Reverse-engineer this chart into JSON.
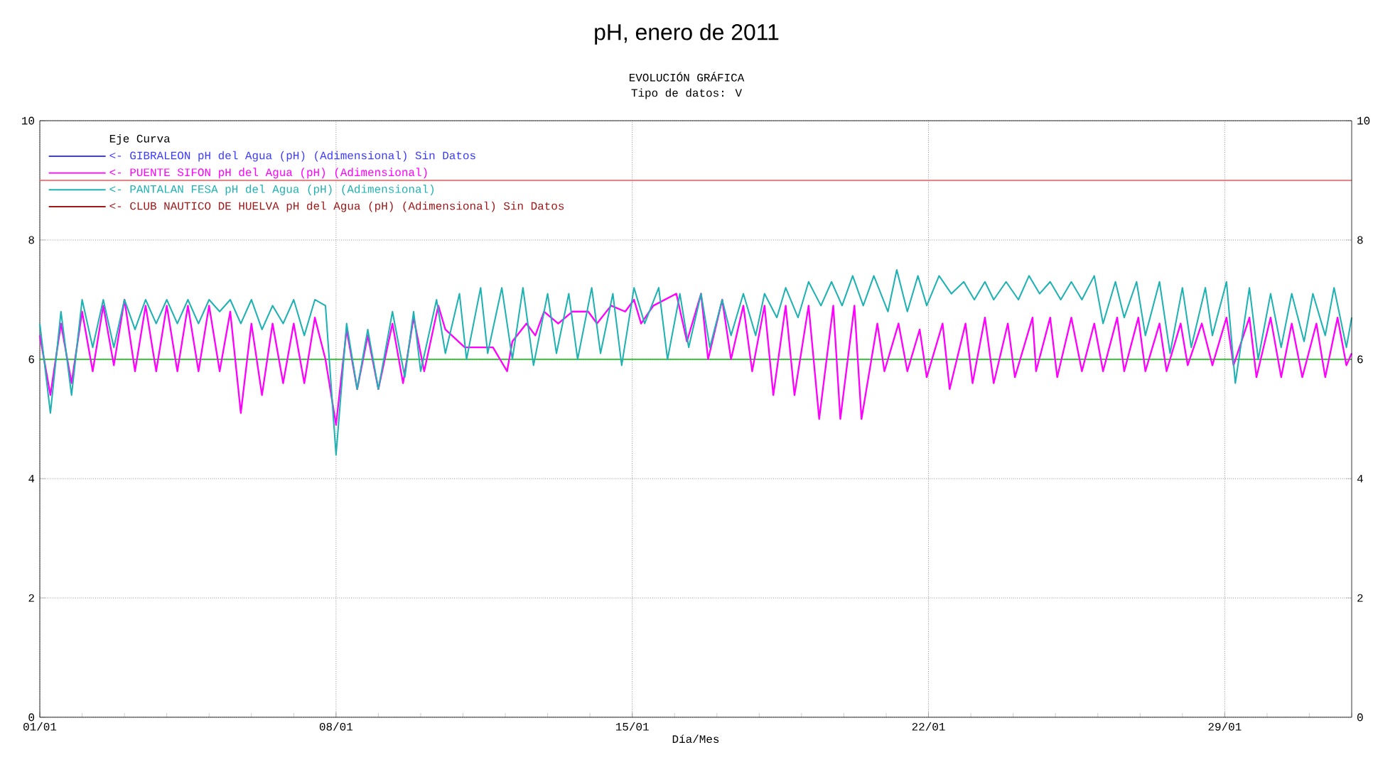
{
  "chart_data": {
    "type": "line",
    "title": "pH, enero de 2011",
    "subtitle": "EVOLUCIÓN GRÁFICA",
    "annotations": [
      "Tipo de datos:  V"
    ],
    "xlabel": "Día/Mes",
    "legend_title": "Eje Curva",
    "legend": "top left",
    "grid": true,
    "xlim": [
      "2011-01-01",
      "2011-02-01"
    ],
    "xticks": [
      {
        "value": "2011-01-01",
        "label": "01/01"
      },
      {
        "value": "2011-01-08",
        "label": "08/01"
      },
      {
        "value": "2011-01-15",
        "label": "15/01"
      },
      {
        "value": "2011-01-22",
        "label": "22/01"
      },
      {
        "value": "2011-01-29",
        "label": "29/01"
      }
    ],
    "ylim": [
      0,
      10
    ],
    "yticks": [
      0,
      2,
      4,
      6,
      8,
      10
    ],
    "y2lim": [
      0,
      10
    ],
    "y2ticks": [
      0,
      2,
      4,
      6,
      8,
      10
    ],
    "ref_lines": [
      {
        "axis": "y",
        "value": 9,
        "color": "#ff5050"
      },
      {
        "axis": "y",
        "value": 6,
        "color": "#00c000"
      }
    ],
    "series": [
      {
        "name": "<-  GIBRALEON pH del Agua (pH) (Adimensional) Sin Datos",
        "color": "#3c3cff"
      },
      {
        "name": "<-  PUENTE SIFON pH del Agua (pH) (Adimensional)",
        "color": "#ff00ff",
        "x": [
          "2011-01-01T00:00",
          "2011-01-01T06:00",
          "2011-01-01T12:00",
          "2011-01-01T18:00",
          "2011-01-02T00:00",
          "2011-01-02T06:00",
          "2011-01-02T12:00",
          "2011-01-02T18:00",
          "2011-01-03T00:00",
          "2011-01-03T06:00",
          "2011-01-03T12:00",
          "2011-01-03T18:00",
          "2011-01-04T00:00",
          "2011-01-04T06:00",
          "2011-01-04T12:00",
          "2011-01-04T18:00",
          "2011-01-05T00:00",
          "2011-01-05T06:00",
          "2011-01-05T12:00",
          "2011-01-05T18:00",
          "2011-01-06T00:00",
          "2011-01-06T06:00",
          "2011-01-06T12:00",
          "2011-01-06T18:00",
          "2011-01-07T00:00",
          "2011-01-07T06:00",
          "2011-01-07T12:00",
          "2011-01-07T18:00",
          "2011-01-08T00:00",
          "2011-01-08T06:00",
          "2011-01-08T12:00",
          "2011-01-08T18:00",
          "2011-01-09T00:00",
          "2011-01-09T08:00",
          "2011-01-09T14:00",
          "2011-01-09T20:00",
          "2011-01-10T02:00",
          "2011-01-10T10:00",
          "2011-01-10T14:00",
          "2011-01-11T01:00",
          "2011-01-11T17:00",
          "2011-01-12T01:00",
          "2011-01-12T04:00",
          "2011-01-12T12:00",
          "2011-01-12T17:00",
          "2011-01-12T22:00",
          "2011-01-13T06:00",
          "2011-01-13T14:00",
          "2011-01-13T23:00",
          "2011-01-14T04:00",
          "2011-01-14T12:00",
          "2011-01-14T20:00",
          "2011-01-15T01:00",
          "2011-01-15T05:00",
          "2011-01-15T12:00",
          "2011-01-16T01:00",
          "2011-01-16T07:00",
          "2011-01-16T15:00",
          "2011-01-16T19:00",
          "2011-01-17T03:00",
          "2011-01-17T08:00",
          "2011-01-17T15:00",
          "2011-01-17T20:00",
          "2011-01-18T03:00",
          "2011-01-18T08:00",
          "2011-01-18T15:00",
          "2011-01-18T20:00",
          "2011-01-19T04:00",
          "2011-01-19T10:00",
          "2011-01-19T18:00",
          "2011-01-19T22:00",
          "2011-01-20T06:00",
          "2011-01-20T10:00",
          "2011-01-20T19:00",
          "2011-01-20T23:00",
          "2011-01-21T07:00",
          "2011-01-21T12:00",
          "2011-01-21T19:00",
          "2011-01-21T23:00",
          "2011-01-22T08:00",
          "2011-01-22T12:00",
          "2011-01-22T21:00",
          "2011-01-23T01:00",
          "2011-01-23T08:00",
          "2011-01-23T13:00",
          "2011-01-23T21:00",
          "2011-01-24T01:00",
          "2011-01-24T11:00",
          "2011-01-24T13:00",
          "2011-01-24T21:00",
          "2011-01-25T01:00",
          "2011-01-25T09:00",
          "2011-01-25T15:00",
          "2011-01-25T22:00",
          "2011-01-26T03:00",
          "2011-01-26T11:00",
          "2011-01-26T15:00",
          "2011-01-26T23:00",
          "2011-01-27T03:00",
          "2011-01-27T11:00",
          "2011-01-27T15:00",
          "2011-01-27T23:00",
          "2011-01-28T03:00",
          "2011-01-28T11:00",
          "2011-01-28T17:00",
          "2011-01-29T01:00",
          "2011-01-29T05:00",
          "2011-01-29T14:00",
          "2011-01-29T18:00",
          "2011-01-30T02:00",
          "2011-01-30T08:00",
          "2011-01-30T14:00",
          "2011-01-30T20:00",
          "2011-01-31T04:00",
          "2011-01-31T09:00",
          "2011-01-31T16:00",
          "2011-01-31T21:00",
          "2011-02-01T00:00"
        ],
        "values": [
          6.4,
          5.4,
          6.6,
          5.6,
          6.8,
          5.8,
          6.9,
          5.9,
          7.0,
          5.8,
          6.9,
          5.8,
          6.9,
          5.8,
          6.9,
          5.8,
          6.9,
          5.8,
          6.8,
          5.1,
          6.6,
          5.4,
          6.6,
          5.6,
          6.6,
          5.6,
          6.7,
          6.0,
          4.9,
          6.5,
          5.5,
          6.4,
          5.5,
          6.6,
          5.6,
          6.7,
          5.8,
          6.9,
          6.5,
          6.2,
          6.2,
          5.8,
          6.3,
          6.6,
          6.4,
          6.8,
          6.6,
          6.8,
          6.8,
          6.6,
          6.9,
          6.8,
          7.0,
          6.6,
          6.9,
          7.1,
          6.3,
          7.1,
          6.0,
          7.0,
          6.0,
          6.9,
          5.8,
          6.9,
          5.4,
          6.9,
          5.4,
          6.9,
          5.0,
          6.9,
          5.0,
          6.9,
          5.0,
          6.6,
          5.8,
          6.6,
          5.8,
          6.5,
          5.7,
          6.6,
          5.5,
          6.6,
          5.6,
          6.7,
          5.6,
          6.6,
          5.7,
          6.7,
          5.8,
          6.7,
          5.7,
          6.7,
          5.8,
          6.6,
          5.8,
          6.7,
          5.8,
          6.7,
          5.8,
          6.6,
          5.8,
          6.6,
          5.9,
          6.6,
          5.9,
          6.7,
          5.9,
          6.7,
          5.7,
          6.7,
          5.7,
          6.6,
          5.7,
          6.6,
          5.7,
          6.7,
          5.9,
          6.1
        ]
      },
      {
        "name": "<-  PANTALAN FESA pH del Agua (pH) (Adimensional)",
        "color": "#20b2b2",
        "x": [
          "2011-01-01T00:00",
          "2011-01-01T06:00",
          "2011-01-01T12:00",
          "2011-01-01T18:00",
          "2011-01-02T00:00",
          "2011-01-02T06:00",
          "2011-01-02T12:00",
          "2011-01-02T18:00",
          "2011-01-03T00:00",
          "2011-01-03T06:00",
          "2011-01-03T12:00",
          "2011-01-03T18:00",
          "2011-01-04T00:00",
          "2011-01-04T06:00",
          "2011-01-04T12:00",
          "2011-01-04T18:00",
          "2011-01-05T00:00",
          "2011-01-05T06:00",
          "2011-01-05T12:00",
          "2011-01-05T18:00",
          "2011-01-06T00:00",
          "2011-01-06T06:00",
          "2011-01-06T12:00",
          "2011-01-06T18:00",
          "2011-01-07T00:00",
          "2011-01-07T06:00",
          "2011-01-07T12:00",
          "2011-01-07T18:00",
          "2011-01-08T00:00",
          "2011-01-08T06:00",
          "2011-01-08T12:00",
          "2011-01-08T18:00",
          "2011-01-09T00:00",
          "2011-01-09T08:00",
          "2011-01-09T15:00",
          "2011-01-09T20:00",
          "2011-01-10T00:00",
          "2011-01-10T09:00",
          "2011-01-10T14:00",
          "2011-01-10T22:00",
          "2011-01-11T02:00",
          "2011-01-11T10:00",
          "2011-01-11T14:00",
          "2011-01-11T22:00",
          "2011-01-12T04:00",
          "2011-01-12T10:00",
          "2011-01-12T16:00",
          "2011-01-13T00:00",
          "2011-01-13T05:00",
          "2011-01-13T12:00",
          "2011-01-13T17:00",
          "2011-01-14T01:00",
          "2011-01-14T06:00",
          "2011-01-14T13:00",
          "2011-01-14T18:00",
          "2011-01-15T01:00",
          "2011-01-15T07:00",
          "2011-01-15T15:00",
          "2011-01-15T20:00",
          "2011-01-16T03:00",
          "2011-01-16T08:00",
          "2011-01-16T15:00",
          "2011-01-16T20:00",
          "2011-01-17T03:00",
          "2011-01-17T08:00",
          "2011-01-17T15:00",
          "2011-01-17T22:00",
          "2011-01-18T03:00",
          "2011-01-18T10:00",
          "2011-01-18T15:00",
          "2011-01-18T22:00",
          "2011-01-19T04:00",
          "2011-01-19T11:00",
          "2011-01-19T17:00",
          "2011-01-19T23:00",
          "2011-01-20T05:00",
          "2011-01-20T11:00",
          "2011-01-20T17:00",
          "2011-01-21T01:00",
          "2011-01-21T06:00",
          "2011-01-21T12:00",
          "2011-01-21T18:00",
          "2011-01-21T23:00",
          "2011-01-22T06:00",
          "2011-01-22T13:00",
          "2011-01-22T20:00",
          "2011-01-23T02:00",
          "2011-01-23T08:00",
          "2011-01-23T13:00",
          "2011-01-23T20:00",
          "2011-01-24T03:00",
          "2011-01-24T09:00",
          "2011-01-24T15:00",
          "2011-01-24T21:00",
          "2011-01-25T03:00",
          "2011-01-25T09:00",
          "2011-01-25T15:00",
          "2011-01-25T22:00",
          "2011-01-26T03:00",
          "2011-01-26T10:00",
          "2011-01-26T15:00",
          "2011-01-26T22:00",
          "2011-01-27T03:00",
          "2011-01-27T11:00",
          "2011-01-27T17:00",
          "2011-01-28T00:00",
          "2011-01-28T05:00",
          "2011-01-28T13:00",
          "2011-01-28T17:00",
          "2011-01-29T01:00",
          "2011-01-29T06:00",
          "2011-01-29T14:00",
          "2011-01-29T19:00",
          "2011-01-30T02:00",
          "2011-01-30T08:00",
          "2011-01-30T14:00",
          "2011-01-30T21:00",
          "2011-01-31T02:00",
          "2011-01-31T09:00",
          "2011-01-31T14:00",
          "2011-01-31T21:00",
          "2011-02-01T00:00"
        ],
        "values": [
          6.6,
          5.1,
          6.8,
          5.4,
          7.0,
          6.2,
          7.0,
          6.2,
          7.0,
          6.5,
          7.0,
          6.6,
          7.0,
          6.6,
          7.0,
          6.6,
          7.0,
          6.8,
          7.0,
          6.6,
          7.0,
          6.5,
          6.9,
          6.6,
          7.0,
          6.4,
          7.0,
          6.9,
          4.4,
          6.6,
          5.5,
          6.5,
          5.5,
          6.8,
          5.7,
          6.8,
          5.8,
          7.0,
          6.1,
          7.1,
          6.0,
          7.2,
          6.1,
          7.2,
          6.0,
          7.2,
          5.9,
          7.1,
          6.1,
          7.1,
          6.0,
          7.2,
          6.1,
          7.1,
          5.9,
          7.2,
          6.6,
          7.2,
          6.0,
          7.1,
          6.2,
          7.1,
          6.2,
          7.0,
          6.4,
          7.1,
          6.4,
          7.1,
          6.7,
          7.2,
          6.7,
          7.3,
          6.9,
          7.3,
          6.9,
          7.4,
          6.9,
          7.4,
          6.8,
          7.5,
          6.8,
          7.4,
          6.9,
          7.4,
          7.1,
          7.3,
          7.0,
          7.3,
          7.0,
          7.3,
          7.0,
          7.4,
          7.1,
          7.3,
          7.0,
          7.3,
          7.0,
          7.4,
          6.6,
          7.3,
          6.7,
          7.3,
          6.4,
          7.3,
          6.1,
          7.2,
          6.2,
          7.2,
          6.4,
          7.3,
          5.6,
          7.2,
          6.0,
          7.1,
          6.2,
          7.1,
          6.3,
          7.1,
          6.4,
          7.2,
          6.2,
          6.7
        ]
      },
      {
        "name": "<-  CLUB NAUTICO DE HUELVA pH del Agua (pH) (Adimensional) Sin Datos",
        "color": "#a01818"
      }
    ]
  }
}
